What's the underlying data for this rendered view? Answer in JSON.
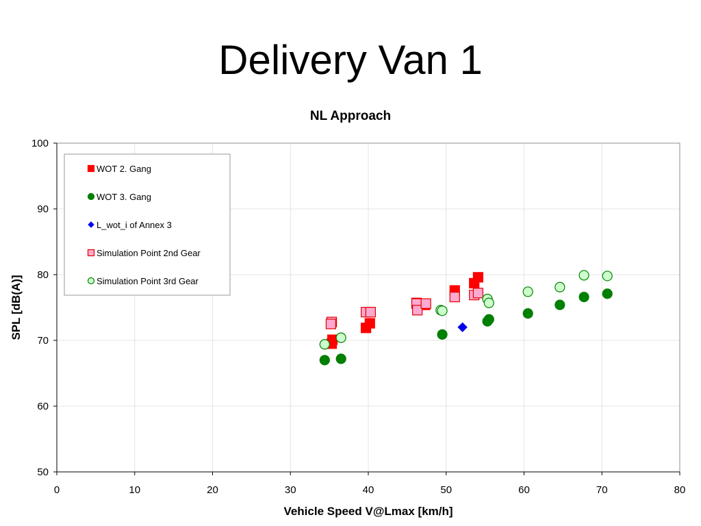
{
  "slide": {
    "title": "Delivery Van 1"
  },
  "chart_data": {
    "type": "scatter",
    "title": "NL Approach",
    "xlabel": "Vehicle Speed V@Lmax [km/h]",
    "ylabel": "SPL [dB(A)]",
    "xlim": [
      0,
      80
    ],
    "ylim": [
      50,
      100
    ],
    "xticks": [
      0,
      10,
      20,
      30,
      40,
      50,
      60,
      70,
      80
    ],
    "yticks": [
      50,
      60,
      70,
      80,
      90,
      100
    ],
    "grid": true,
    "legend": "upper-left inside",
    "series": [
      {
        "name": "WOT 2. Gang",
        "marker": "square",
        "fill": "#ff0000",
        "stroke": "#ff0000",
        "x": [
          35.3,
          35.4,
          39.7,
          40.2,
          46.2,
          47.3,
          51.1,
          53.6,
          54.1
        ],
        "y": [
          69.5,
          70.1,
          71.9,
          72.6,
          75.7,
          75.4,
          77.6,
          78.7,
          79.6
        ]
      },
      {
        "name": "WOT 3. Gang",
        "marker": "circle",
        "fill": "#008000",
        "stroke": "#008000",
        "x": [
          34.4,
          36.5,
          49.5,
          55.3,
          55.5,
          60.5,
          64.6,
          67.7,
          70.7
        ],
        "y": [
          67.0,
          67.2,
          70.9,
          72.9,
          73.2,
          74.1,
          75.4,
          76.6,
          77.1
        ]
      },
      {
        "name": "L_wot_i of Annex 3",
        "marker": "diamond",
        "fill": "#0000ee",
        "stroke": "#0000ee",
        "x": [
          52.1
        ],
        "y": [
          72.0
        ]
      },
      {
        "name": "Simulation Point 2nd Gear",
        "marker": "square",
        "fill": "#ffa8d0",
        "stroke": "#e00000",
        "x": [
          35.3,
          35.2,
          39.7,
          40.3,
          46.2,
          46.3,
          47.4,
          51.1,
          53.6,
          54.1
        ],
        "y": [
          72.8,
          72.5,
          74.3,
          74.3,
          75.6,
          74.6,
          75.6,
          76.6,
          76.9,
          77.2
        ]
      },
      {
        "name": "Simulation Point 3rd Gear",
        "marker": "circle",
        "fill": "#ccffcc",
        "stroke": "#008000",
        "x": [
          34.4,
          36.5,
          49.3,
          49.5,
          55.3,
          55.5,
          60.5,
          64.6,
          67.7,
          70.7
        ],
        "y": [
          69.4,
          70.4,
          74.6,
          74.5,
          76.3,
          75.7,
          77.4,
          78.1,
          79.9,
          79.8
        ]
      }
    ]
  }
}
